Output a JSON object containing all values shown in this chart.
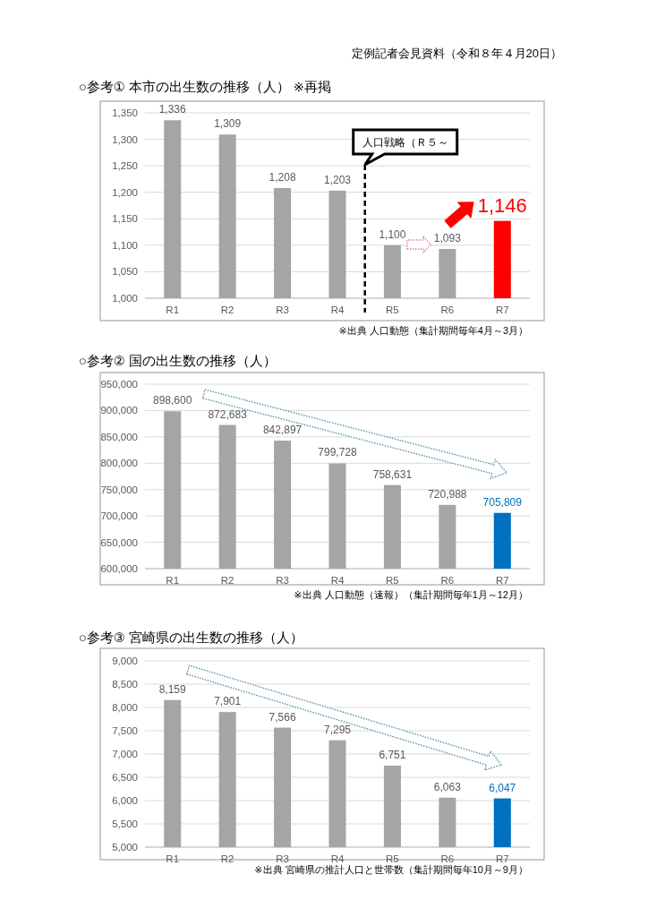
{
  "chart_data": [
    {
      "type": "bar",
      "title": "○参考① 本市の出生数の推移（人） ※再掲",
      "categories": [
        "R1",
        "R2",
        "R3",
        "R4",
        "R5",
        "R6",
        "R7"
      ],
      "values": [
        1336,
        1309,
        1208,
        1203,
        1100,
        1093,
        1146
      ],
      "colors": [
        "#a5a5a5",
        "#a5a5a5",
        "#a5a5a5",
        "#a5a5a5",
        "#a5a5a5",
        "#a5a5a5",
        "#ff0000"
      ],
      "value_labels": [
        "1,336",
        "1,309",
        "1,208",
        "1,203",
        "1,100",
        "1,093",
        null
      ],
      "ylim": [
        1000,
        1350
      ],
      "yticks": [
        {
          "value": 1000,
          "label": "1,000"
        },
        {
          "value": 1050,
          "label": "1,050"
        },
        {
          "value": 1100,
          "label": "1,100"
        },
        {
          "value": 1150,
          "label": "1,150"
        },
        {
          "value": 1200,
          "label": "1,200"
        },
        {
          "value": 1250,
          "label": "1,250"
        },
        {
          "value": 1300,
          "label": "1,300"
        },
        {
          "value": 1350,
          "label": "1,350"
        }
      ],
      "grid": "y",
      "annotations": [
        "定例記者会見資料（令和８年４月20日）",
        "人口戦略（Ｒ５～",
        {
          "text": "1,146",
          "x": "R7",
          "y": 1146
        },
        "※出典 人口動態（集計期間毎年4月～3月）"
      ]
    },
    {
      "type": "bar",
      "title": "○参考② 国の出生数の推移（人）",
      "categories": [
        "R1",
        "R2",
        "R3",
        "R4",
        "R5",
        "R6",
        "R7"
      ],
      "values": [
        898600,
        872683,
        842897,
        799728,
        758631,
        720988,
        705809
      ],
      "colors": [
        "#a5a5a5",
        "#a5a5a5",
        "#a5a5a5",
        "#a5a5a5",
        "#a5a5a5",
        "#a5a5a5",
        "#0070c0"
      ],
      "value_labels": [
        "898,600",
        "872,683",
        "842,897",
        "799,728",
        "758,631",
        "720,988",
        "705,809"
      ],
      "ylim": [
        600000,
        950000
      ],
      "yticks": [
        {
          "value": 600000,
          "label": "600,000"
        },
        {
          "value": 650000,
          "label": "650,000"
        },
        {
          "value": 700000,
          "label": "700,000"
        },
        {
          "value": 750000,
          "label": "750,000"
        },
        {
          "value": 800000,
          "label": "800,000"
        },
        {
          "value": 850000,
          "label": "850,000"
        },
        {
          "value": 900000,
          "label": "900,000"
        },
        {
          "value": 950000,
          "label": "950,000"
        }
      ],
      "grid": "y",
      "annotations": [
        "※出典 人口動態（速報）（集計期間毎年1月～12月）"
      ]
    },
    {
      "type": "bar",
      "title": "○参考③ 宮崎県の出生数の推移（人）",
      "categories": [
        "R1",
        "R2",
        "R3",
        "R4",
        "R5",
        "R6",
        "R7"
      ],
      "values": [
        8159,
        7901,
        7566,
        7295,
        6751,
        6063,
        6047
      ],
      "colors": [
        "#a5a5a5",
        "#a5a5a5",
        "#a5a5a5",
        "#a5a5a5",
        "#a5a5a5",
        "#a5a5a5",
        "#0070c0"
      ],
      "value_labels": [
        "8,159",
        "7,901",
        "7,566",
        "7,295",
        "6,751",
        "6,063",
        "6,047"
      ],
      "ylim": [
        5000,
        9000
      ],
      "yticks": [
        {
          "value": 5000,
          "label": "5,000"
        },
        {
          "value": 5500,
          "label": "5,500"
        },
        {
          "value": 6000,
          "label": "6,000"
        },
        {
          "value": 6500,
          "label": "6,500"
        },
        {
          "value": 7000,
          "label": "7,000"
        },
        {
          "value": 7500,
          "label": "7,500"
        },
        {
          "value": 8000,
          "label": "8,000"
        },
        {
          "value": 8500,
          "label": "8,500"
        },
        {
          "value": 9000,
          "label": "9,000"
        }
      ],
      "grid": "y",
      "annotations": [
        "※出典 宮崎県の推計人口と世帯数（集計期間毎年10月～9月）"
      ]
    }
  ]
}
